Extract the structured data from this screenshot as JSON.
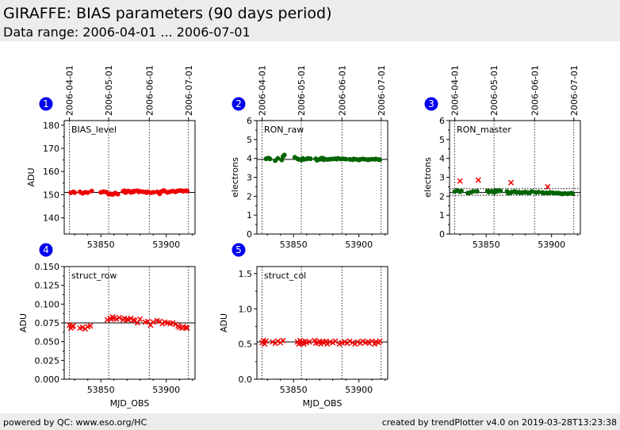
{
  "header": {
    "title": "GIRAFFE: BIAS parameters (90 days period)",
    "subtitle": "Data range: 2006-04-01 ... 2006-07-01"
  },
  "footer": {
    "left": "powered by QC: www.eso.org/HC",
    "right": "created by trendPlotter v4.0 on 2019-03-28T13:23:38"
  },
  "colors": {
    "badge": "#0000ee",
    "red": "#ee0000",
    "green": "#006400",
    "header_bg": "#ececec"
  },
  "top_date_ticks": [
    {
      "mjd": 53826,
      "label": "2006-04-01"
    },
    {
      "mjd": 53856,
      "label": "2006-05-01"
    },
    {
      "mjd": 53887,
      "label": "2006-06-01"
    },
    {
      "mjd": 53917,
      "label": "2006-07-01"
    }
  ],
  "chart_data": [
    {
      "id": 1,
      "badge": "1",
      "type": "scatter",
      "label": "BIAS_level",
      "ylabel": "ADU",
      "xlabel": "",
      "xlim": [
        53822,
        53922
      ],
      "ylim": [
        133,
        182
      ],
      "yticks": [
        140,
        150,
        160,
        170,
        180
      ],
      "yticklabels": [
        "140",
        "150",
        "160",
        "170",
        "180"
      ],
      "xticks": [
        53850,
        53900
      ],
      "xticklabels": [
        "53850",
        "53900"
      ],
      "reference_lines": [
        151
      ],
      "series": [
        {
          "marker": "circle",
          "color": "#ee0000",
          "x": [
            53827,
            53829,
            53830,
            53834,
            53836,
            53838,
            53840,
            53843,
            53850,
            53852,
            53854,
            53856,
            53857,
            53858,
            53859,
            53860,
            53861,
            53863,
            53867,
            53868,
            53869,
            53870,
            53871,
            53873,
            53874,
            53875,
            53876,
            53878,
            53879,
            53880,
            53882,
            53884,
            53885,
            53886,
            53888,
            53890,
            53893,
            53895,
            53896,
            53898,
            53899,
            53901,
            53903,
            53905,
            53907,
            53908,
            53910,
            53912,
            53913,
            53915,
            53916
          ],
          "y": [
            150.8,
            151.2,
            150.9,
            151.2,
            150.6,
            151.0,
            150.9,
            151.6,
            151.0,
            151.3,
            151.1,
            150.2,
            150.4,
            150.2,
            150.1,
            150.4,
            150.7,
            150.2,
            151.4,
            151.7,
            150.9,
            151.3,
            151.6,
            151.0,
            151.4,
            151.2,
            151.6,
            151.7,
            151.2,
            151.4,
            151.3,
            151.1,
            150.9,
            151.2,
            150.8,
            151.0,
            151.2,
            150.4,
            151.3,
            151.8,
            151.5,
            151.0,
            151.3,
            151.6,
            151.2,
            151.5,
            151.8,
            151.7,
            151.5,
            151.7,
            151.6
          ]
        }
      ]
    },
    {
      "id": 2,
      "badge": "2",
      "type": "scatter",
      "label": "RON_raw",
      "ylabel": "electrons",
      "xlabel": "",
      "xlim": [
        53822,
        53922
      ],
      "ylim": [
        0,
        6
      ],
      "yticks": [
        0,
        1,
        2,
        3,
        4,
        5,
        6
      ],
      "yticklabels": [
        "0",
        "1",
        "2",
        "3",
        "4",
        "5",
        "6"
      ],
      "xticks": [
        53850,
        53900
      ],
      "xticklabels": [
        "53850",
        "53900"
      ],
      "reference_lines": [
        3.95
      ],
      "series": [
        {
          "marker": "circle",
          "color": "#006400",
          "x": [
            53829,
            53830,
            53831,
            53832,
            53836,
            53838,
            53841,
            53842,
            53843,
            53851,
            53853,
            53854,
            53856,
            53857,
            53858,
            53860,
            53861,
            53863,
            53867,
            53868,
            53870,
            53871,
            53872,
            53873,
            53874,
            53876,
            53878,
            53880,
            53882,
            53883,
            53884,
            53886,
            53888,
            53890,
            53893,
            53895,
            53896,
            53898,
            53900,
            53901,
            53903,
            53905,
            53907,
            53908,
            53910,
            53912,
            53913,
            53915,
            53916
          ],
          "y": [
            3.98,
            4.0,
            4.01,
            3.97,
            3.88,
            4.0,
            3.92,
            4.1,
            4.18,
            4.06,
            3.98,
            3.95,
            3.92,
            4.0,
            3.95,
            3.97,
            4.0,
            3.98,
            3.98,
            3.9,
            3.95,
            4.0,
            4.02,
            3.93,
            3.97,
            3.94,
            3.96,
            3.97,
            3.98,
            3.96,
            4.0,
            3.97,
            3.98,
            3.96,
            3.95,
            3.93,
            3.97,
            3.95,
            3.92,
            3.95,
            3.97,
            3.95,
            3.93,
            3.94,
            3.96,
            3.95,
            3.97,
            3.94,
            3.93
          ]
        }
      ]
    },
    {
      "id": 3,
      "badge": "3",
      "type": "scatter",
      "label": "RON_master",
      "ylabel": "electrons",
      "xlabel": "",
      "xlim": [
        53822,
        53922
      ],
      "ylim": [
        0,
        6
      ],
      "yticks": [
        0,
        1,
        2,
        3,
        4,
        5,
        6
      ],
      "yticklabels": [
        "0",
        "1",
        "2",
        "3",
        "4",
        "5",
        "6"
      ],
      "xticks": [
        53850,
        53900
      ],
      "xticklabels": [
        "53850",
        "53900"
      ],
      "reference_lines": [
        2.2,
        2.05,
        2.4
      ],
      "series": [
        {
          "marker": "circle",
          "color": "#006400",
          "x": [
            53826,
            53828,
            53830,
            53831,
            53836,
            53838,
            53840,
            53843,
            53851,
            53852,
            53854,
            53856,
            53857,
            53858,
            53860,
            53861,
            53866,
            53867,
            53869,
            53870,
            53872,
            53873,
            53875,
            53876,
            53878,
            53880,
            53881,
            53883,
            53885,
            53888,
            53890,
            53893,
            53894,
            53896,
            53898,
            53899,
            53901,
            53903,
            53905,
            53907,
            53908,
            53910,
            53912,
            53913,
            53915,
            53916
          ],
          "y": [
            2.25,
            2.3,
            2.24,
            2.28,
            2.17,
            2.2,
            2.25,
            2.26,
            2.28,
            2.22,
            2.26,
            2.2,
            2.3,
            2.25,
            2.3,
            2.28,
            2.25,
            2.15,
            2.2,
            2.23,
            2.25,
            2.2,
            2.22,
            2.18,
            2.2,
            2.22,
            2.2,
            2.18,
            2.25,
            2.2,
            2.22,
            2.2,
            2.16,
            2.18,
            2.17,
            2.2,
            2.18,
            2.16,
            2.17,
            2.14,
            2.12,
            2.15,
            2.13,
            2.14,
            2.16,
            2.14
          ]
        },
        {
          "marker": "x",
          "color": "#ee0000",
          "x": [
            53830,
            53844,
            53869,
            53897
          ],
          "y": [
            2.8,
            2.85,
            2.72,
            2.5
          ]
        }
      ]
    },
    {
      "id": 4,
      "badge": "4",
      "type": "scatter",
      "label": "struct_row",
      "ylabel": "ADU",
      "xlabel": "MJD_OBS",
      "xlim": [
        53822,
        53922
      ],
      "ylim": [
        0,
        0.15
      ],
      "yticks": [
        0,
        0.025,
        0.05,
        0.075,
        0.1,
        0.125,
        0.15
      ],
      "yticklabels": [
        "0.000",
        "0.025",
        "0.050",
        "0.075",
        "0.100",
        "0.125",
        "0.150"
      ],
      "xticks": [
        53850,
        53900
      ],
      "xticklabels": [
        "53850",
        "53900"
      ],
      "reference_lines": [
        0.075
      ],
      "series": [
        {
          "marker": "x",
          "color": "#ee0000",
          "x": [
            53826,
            53827,
            53828,
            53829,
            53834,
            53836,
            53838,
            53840,
            53842,
            53855,
            53857,
            53858,
            53859,
            53860,
            53862,
            53864,
            53867,
            53868,
            53870,
            53871,
            53873,
            53875,
            53876,
            53878,
            53880,
            53884,
            53886,
            53888,
            53890,
            53893,
            53895,
            53897,
            53899,
            53901,
            53903,
            53905,
            53907,
            53909,
            53910,
            53912,
            53913,
            53915,
            53916
          ],
          "y": [
            0.072,
            0.068,
            0.07,
            0.071,
            0.068,
            0.069,
            0.067,
            0.07,
            0.071,
            0.079,
            0.081,
            0.08,
            0.083,
            0.081,
            0.08,
            0.082,
            0.079,
            0.081,
            0.08,
            0.079,
            0.081,
            0.079,
            0.078,
            0.075,
            0.08,
            0.076,
            0.077,
            0.072,
            0.076,
            0.078,
            0.077,
            0.074,
            0.076,
            0.075,
            0.074,
            0.075,
            0.073,
            0.071,
            0.069,
            0.068,
            0.07,
            0.069,
            0.068
          ]
        }
      ]
    },
    {
      "id": 5,
      "badge": "5",
      "type": "scatter",
      "label": "struct_col",
      "ylabel": "ADU",
      "xlabel": "MJD_OBS",
      "xlim": [
        53822,
        53922
      ],
      "ylim": [
        0,
        1.6
      ],
      "yticks": [
        0,
        0.5,
        1.0,
        1.5
      ],
      "yticklabels": [
        "0.0",
        "0.5",
        "1.0",
        "1.5"
      ],
      "xticks": [
        53850,
        53900
      ],
      "xticklabels": [
        "53850",
        "53900"
      ],
      "reference_lines": [
        0.53
      ],
      "series": [
        {
          "marker": "x",
          "color": "#ee0000",
          "x": [
            53826,
            53827,
            53828,
            53829,
            53834,
            53836,
            53838,
            53840,
            53842,
            53853,
            53854,
            53855,
            53856,
            53857,
            53858,
            53859,
            53860,
            53862,
            53866,
            53867,
            53869,
            53870,
            53871,
            53872,
            53873,
            53875,
            53876,
            53878,
            53880,
            53882,
            53885,
            53887,
            53889,
            53891,
            53893,
            53895,
            53897,
            53899,
            53901,
            53903,
            53905,
            53907,
            53908,
            53910,
            53912,
            53913,
            53915,
            53916
          ],
          "y": [
            0.52,
            0.55,
            0.5,
            0.54,
            0.53,
            0.51,
            0.54,
            0.52,
            0.55,
            0.53,
            0.5,
            0.55,
            0.51,
            0.53,
            0.5,
            0.54,
            0.52,
            0.53,
            0.55,
            0.51,
            0.52,
            0.54,
            0.5,
            0.53,
            0.52,
            0.54,
            0.5,
            0.53,
            0.52,
            0.54,
            0.5,
            0.52,
            0.53,
            0.51,
            0.54,
            0.52,
            0.5,
            0.53,
            0.51,
            0.54,
            0.52,
            0.53,
            0.51,
            0.54,
            0.5,
            0.53,
            0.52,
            0.54
          ]
        }
      ]
    }
  ]
}
